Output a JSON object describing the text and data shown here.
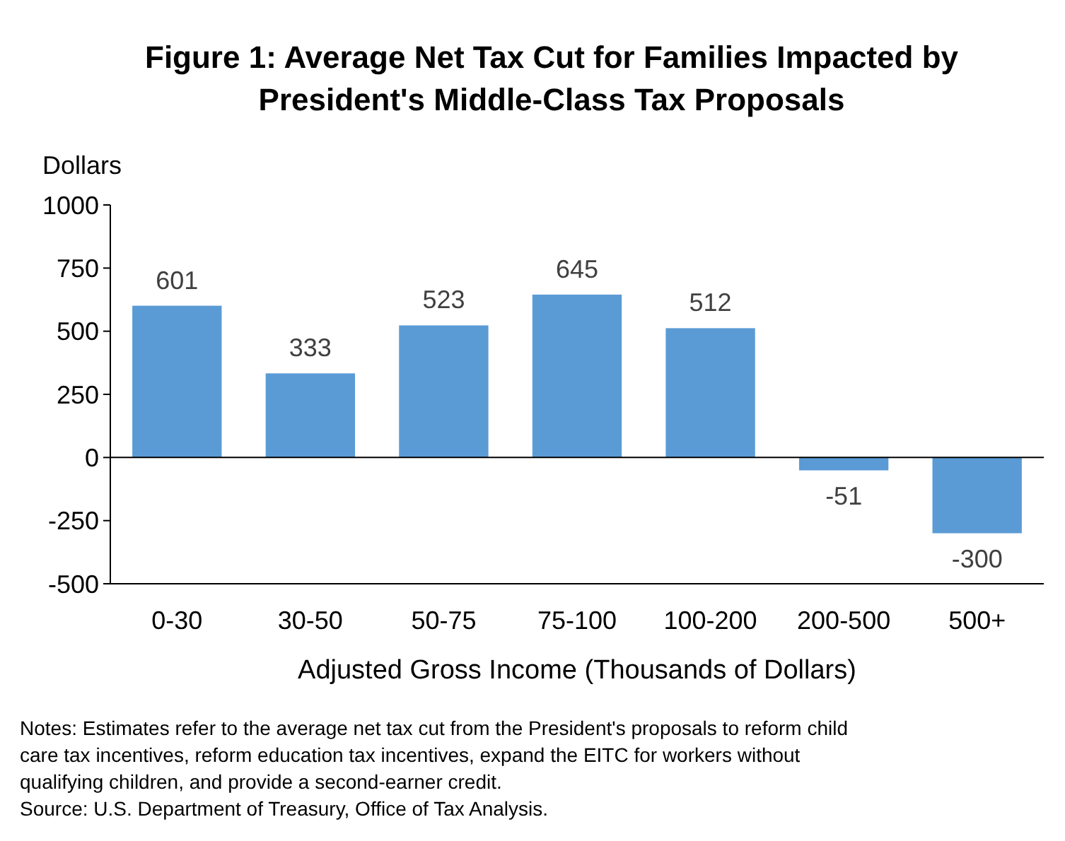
{
  "chart_data": {
    "type": "bar",
    "title": "Figure 1: Average Net Tax Cut for Families Impacted by President's Middle-Class Tax Proposals",
    "ylabel": "Dollars",
    "xlabel": "Adjusted Gross Income (Thousands of Dollars)",
    "categories": [
      "0-30",
      "30-50",
      "50-75",
      "75-100",
      "100-200",
      "200-500",
      "500+"
    ],
    "values": [
      601,
      333,
      523,
      645,
      512,
      -51,
      -300
    ],
    "color": "#5b9bd5",
    "ylim": [
      -500,
      1000
    ],
    "yticks": [
      -500,
      -250,
      0,
      250,
      500,
      750,
      1000
    ],
    "data_labels": true,
    "annotations": [
      "Notes: Estimates refer to the average net tax cut from the President's proposals to reform child care tax incentives, reform education tax incentives, expand the EITC for workers without qualifying children, and provide a second-earner credit.",
      "Source: U.S. Department of Treasury, Office of Tax Analysis."
    ]
  }
}
